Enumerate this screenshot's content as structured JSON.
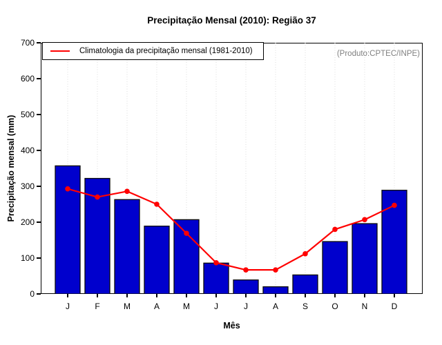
{
  "chart_data": {
    "type": "bar",
    "title": "Precipitação Mensal (2010): Região 37",
    "xlabel": "Mês",
    "ylabel": "Precipitação mensal (mm)",
    "ylim": [
      0,
      700
    ],
    "yticks": [
      0,
      100,
      200,
      300,
      400,
      500,
      600,
      700
    ],
    "categories": [
      "J",
      "F",
      "M",
      "A",
      "M",
      "J",
      "J",
      "A",
      "S",
      "O",
      "N",
      "D"
    ],
    "series": [
      {
        "name": "2010",
        "type": "bar",
        "color": "#0000CD",
        "values": [
          357,
          322,
          263,
          189,
          207,
          86,
          39,
          20,
          53,
          146,
          196,
          289
        ]
      },
      {
        "name": "Climatologia da precipitação mensal (1981-2010)",
        "type": "line",
        "color": "#FF0000",
        "values": [
          293,
          270,
          286,
          250,
          169,
          87,
          67,
          67,
          112,
          180,
          207,
          247
        ]
      }
    ],
    "legend": {
      "position": "topleft",
      "label": "Climatologia da precipitação mensal (1981-2010)"
    },
    "annotation": "(Produto:CPTEC/INPE)",
    "grid": "vertical-dotted",
    "grid_color": "#DCDCDC",
    "bar_border_color": "#0A0A0A"
  }
}
